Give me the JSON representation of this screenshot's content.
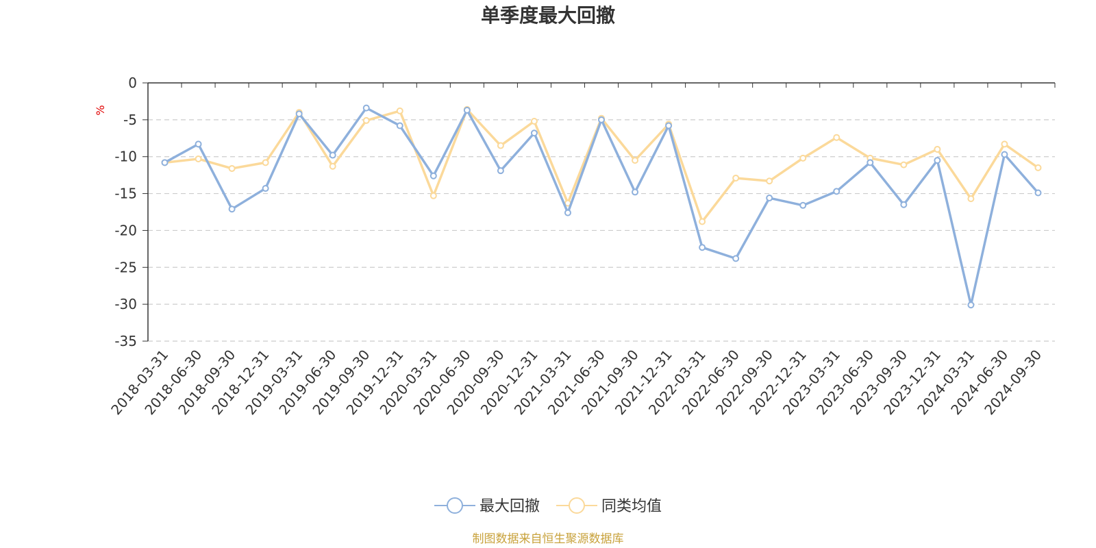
{
  "chart_data": {
    "type": "line",
    "title": "单季度最大回撤",
    "ylabel": "%",
    "ylim": [
      -35,
      0
    ],
    "yticks": [
      0,
      -5,
      -10,
      -15,
      -20,
      -25,
      -30,
      -35
    ],
    "grid": true,
    "legend_position": "bottom-center",
    "categories": [
      "2018-03-31",
      "2018-06-30",
      "2018-09-30",
      "2018-12-31",
      "2019-03-31",
      "2019-06-30",
      "2019-09-30",
      "2019-12-31",
      "2020-03-31",
      "2020-06-30",
      "2020-09-30",
      "2020-12-31",
      "2021-03-31",
      "2021-06-30",
      "2021-09-30",
      "2021-12-31",
      "2022-03-31",
      "2022-06-30",
      "2022-09-30",
      "2022-12-31",
      "2023-03-31",
      "2023-06-30",
      "2023-09-30",
      "2023-12-31",
      "2024-03-31",
      "2024-06-30",
      "2024-09-30"
    ],
    "series": [
      {
        "name": "最大回撤",
        "color": "#8eb0dc",
        "values": [
          -10.8,
          -8.3,
          -17.1,
          -14.3,
          -4.2,
          -9.8,
          -3.4,
          -5.8,
          -12.6,
          -3.7,
          -11.9,
          -6.8,
          -17.6,
          -5.0,
          -14.8,
          -5.8,
          -22.3,
          -23.8,
          -15.6,
          -16.6,
          -14.7,
          -10.8,
          -16.5,
          -10.5,
          -30.1,
          -9.7,
          -14.9
        ]
      },
      {
        "name": "同类均值",
        "color": "#fbd99a",
        "values": [
          -10.8,
          -10.3,
          -11.6,
          -10.8,
          -4.0,
          -11.3,
          -5.1,
          -3.8,
          -15.3,
          -3.6,
          -8.5,
          -5.2,
          -16.3,
          -4.8,
          -10.5,
          -5.6,
          -18.8,
          -12.9,
          -13.3,
          -10.2,
          -7.4,
          -10.2,
          -11.1,
          -9.0,
          -15.7,
          -8.3,
          -11.5
        ]
      }
    ]
  },
  "source_note": "制图数据来自恒生聚源数据库"
}
